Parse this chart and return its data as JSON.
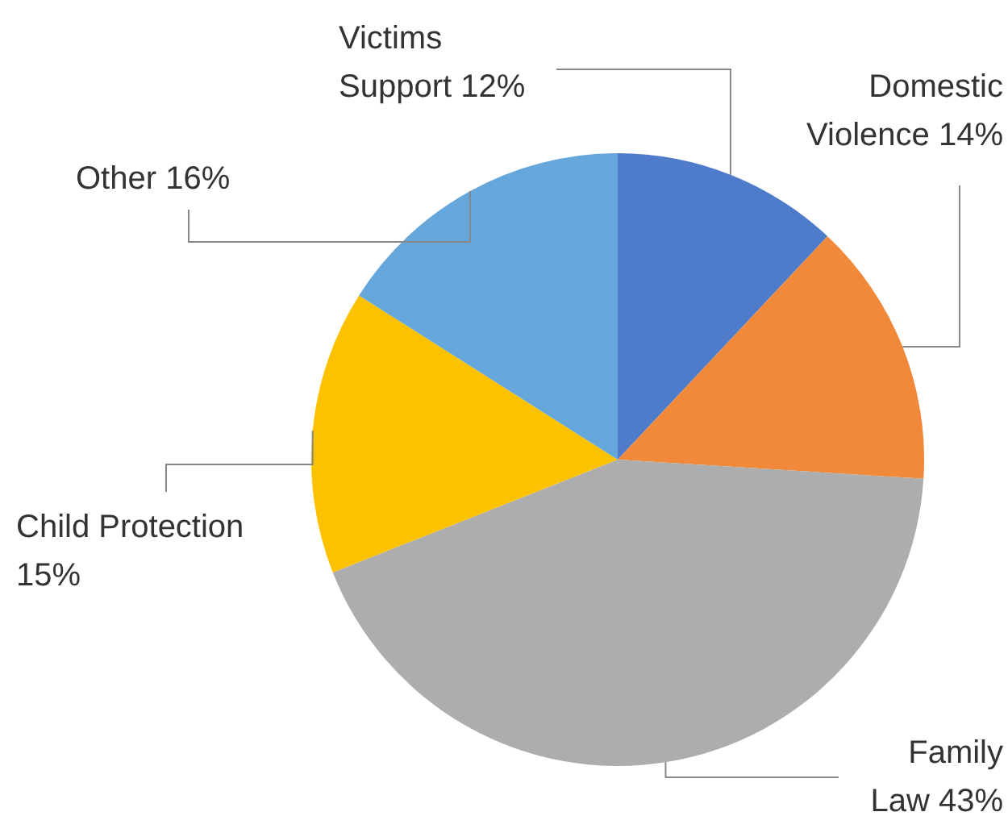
{
  "chart_data": {
    "type": "pie",
    "categories": [
      "Victims Support",
      "Domestic Violence",
      "Family Law",
      "Child Protection",
      "Other"
    ],
    "values": [
      12,
      14,
      43,
      15,
      16
    ],
    "value_labels": [
      "12%",
      "14%",
      "43%",
      "15%",
      "16%"
    ],
    "colors": [
      "#4e7ccb",
      "#f0893a",
      "#adadad",
      "#fcc200",
      "#65a6db"
    ]
  }
}
